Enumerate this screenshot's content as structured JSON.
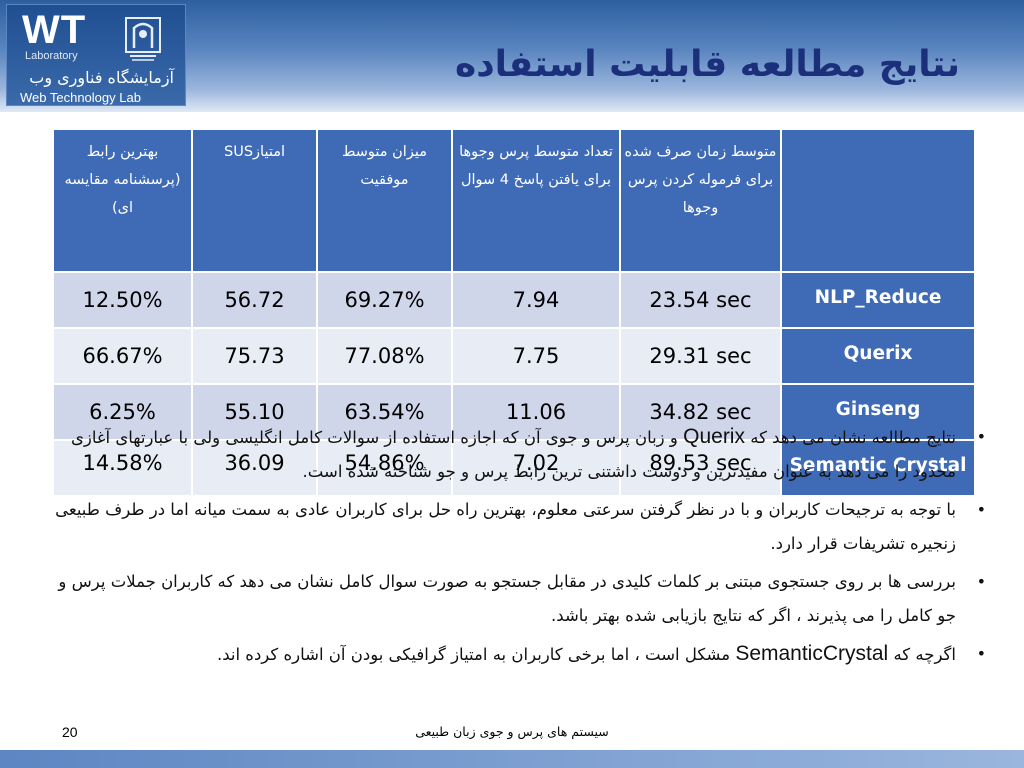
{
  "logo": {
    "wt": "WT",
    "laboratory": "Laboratory",
    "fa_name": "آزمایشگاه فناوری وب",
    "en_name": "Web Technology Lab"
  },
  "title": "نتایج مطالعه قابلیت استفاده",
  "table": {
    "headers": [
      "بهترین رابط (پرسشنامه مقایسه ای)",
      "امتیازSUS",
      "میزان متوسط موفقیت",
      "تعداد متوسط پرس وجوها برای یافتن پاسخ 4 سوال",
      "متوسط زمان صرف شده برای فرموله کردن پرس وجوها",
      ""
    ],
    "rows": [
      {
        "best": "12.50%",
        "sus": "56.72",
        "success": "69.27%",
        "queries": "7.94",
        "time": "23.54 sec",
        "system": "NLP_Reduce"
      },
      {
        "best": "66.67%",
        "sus": "75.73",
        "success": "77.08%",
        "queries": "7.75",
        "time": "29.31 sec",
        "system": "Querix"
      },
      {
        "best": "6.25%",
        "sus": "55.10",
        "success": "63.54%",
        "queries": "11.06",
        "time": "34.82 sec",
        "system": "Ginseng"
      },
      {
        "best": "14.58%",
        "sus": "36.09",
        "success": "54.86%",
        "queries": "7.02",
        "time": "89.53 sec",
        "system": "Semantic Crystal"
      }
    ]
  },
  "bullets": {
    "b1": {
      "pre": "نتایج مطالعه نشان می دهد که",
      "term": "Querix",
      "post": "و زبان پرس و جوی آن که اجازه استفاده از سوالات کامل انگلیسی ولی با عبارتهای آغازی محدود را می دهد به عنوان مفیدترین و دوست داشتنی ترین رابط پرس و جو شناخته شده است."
    },
    "b2": "با توجه به ترجیحات کاربران و با در نظر گرفتن سرعتی معلوم، بهترین راه حل برای کاربران عادی به سمت میانه  اما در طرف طبیعی زنجیره تشریفات قرار دارد.",
    "b3": "بررسی ها بر روی جستجوی مبتنی بر کلمات کلیدی در مقابل جستجو به صورت سوال کامل نشان می دهد که کاربران جملات پرس و جو کامل را می پذیرند ، اگر که نتایج بازیابی شده بهتر باشد.",
    "b4": {
      "pre": "اگرچه که",
      "term": "SemanticCrystal",
      "post": "مشکل است ، اما برخی کاربران به امتیاز گرافیکی بودن آن اشاره کرده اند."
    }
  },
  "footer": {
    "page_number": "20",
    "text": "سیستم های پرس و جوی زبان طبیعی"
  },
  "colors": {
    "header_cell": "#3f6ab6",
    "row_odd": "#cfd6ea",
    "row_even": "#e8ecf5",
    "title": "#1b2f7a"
  }
}
